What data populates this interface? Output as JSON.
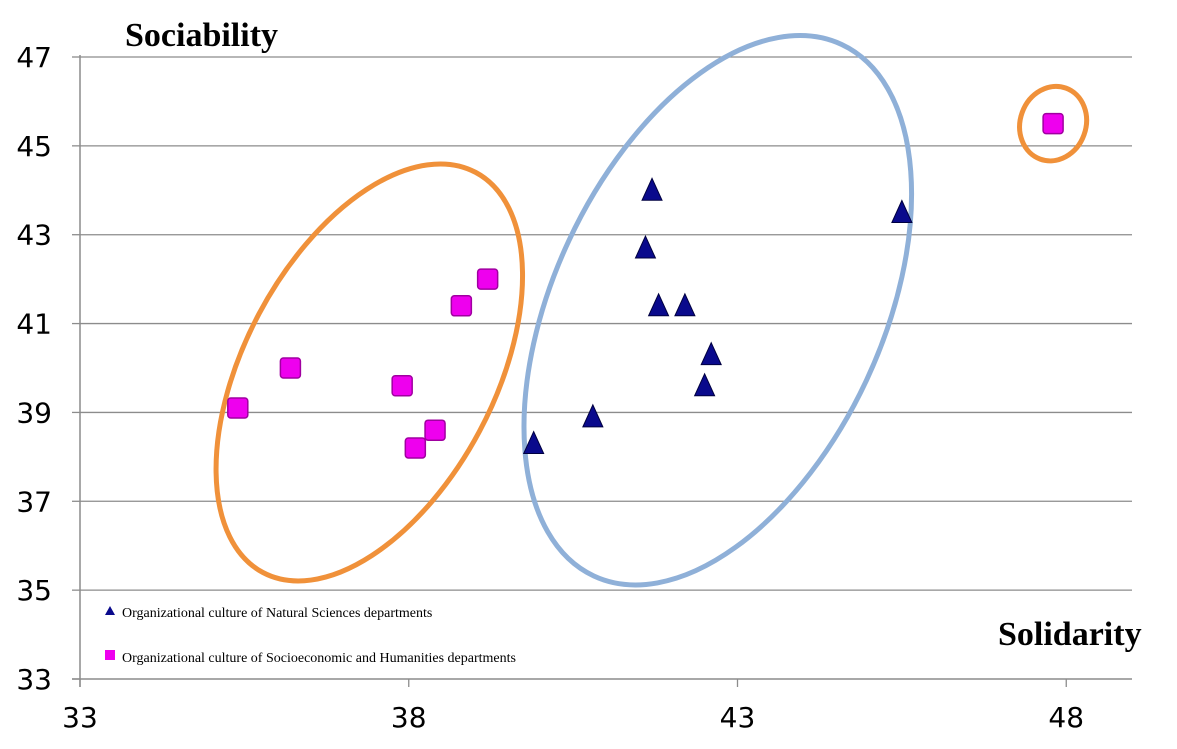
{
  "chart_data": {
    "type": "scatter",
    "xlabel": "Solidarity",
    "ylabel": "Sociability",
    "xlim": [
      33,
      49
    ],
    "ylim": [
      33,
      47
    ],
    "x_ticks": [
      33,
      38,
      43,
      48
    ],
    "y_ticks": [
      33,
      35,
      37,
      39,
      41,
      43,
      45,
      47
    ],
    "grid": "horizontal",
    "legend_position": "bottom-left",
    "series": [
      {
        "name": "Organizational culture of Natural Sciences departments",
        "marker": "triangle",
        "color": "#0a0a8c",
        "points": [
          {
            "x": 39.9,
            "y": 38.3
          },
          {
            "x": 40.8,
            "y": 38.9
          },
          {
            "x": 41.7,
            "y": 44.0
          },
          {
            "x": 41.6,
            "y": 42.7
          },
          {
            "x": 41.8,
            "y": 41.4
          },
          {
            "x": 42.2,
            "y": 41.4
          },
          {
            "x": 42.5,
            "y": 39.6
          },
          {
            "x": 42.6,
            "y": 40.3
          },
          {
            "x": 45.5,
            "y": 43.5
          }
        ]
      },
      {
        "name": "Organizational culture of Socioeconomic and Humanities departments",
        "marker": "square",
        "color": "#ee00ee",
        "points": [
          {
            "x": 35.4,
            "y": 39.1
          },
          {
            "x": 36.2,
            "y": 40.0
          },
          {
            "x": 37.9,
            "y": 39.6
          },
          {
            "x": 38.1,
            "y": 38.2
          },
          {
            "x": 38.4,
            "y": 38.6
          },
          {
            "x": 38.8,
            "y": 41.4
          },
          {
            "x": 39.2,
            "y": 42.0
          },
          {
            "x": 47.8,
            "y": 45.5
          }
        ]
      }
    ],
    "annotations": [
      {
        "shape": "ellipse",
        "color": "#f0913a",
        "cx": 37.4,
        "cy": 39.9,
        "rx_data": 1.9,
        "ry_data": 5.1,
        "rotation": 28
      },
      {
        "shape": "ellipse",
        "color": "#8fb0d8",
        "cx": 42.7,
        "cy": 41.3,
        "rx_data": 2.5,
        "ry_data": 6.6,
        "rotation": 25
      },
      {
        "shape": "ellipse",
        "color": "#f0913a",
        "cx": 47.8,
        "cy": 45.5,
        "rx_data": 0.5,
        "ry_data": 0.85,
        "rotation": 20
      }
    ]
  }
}
